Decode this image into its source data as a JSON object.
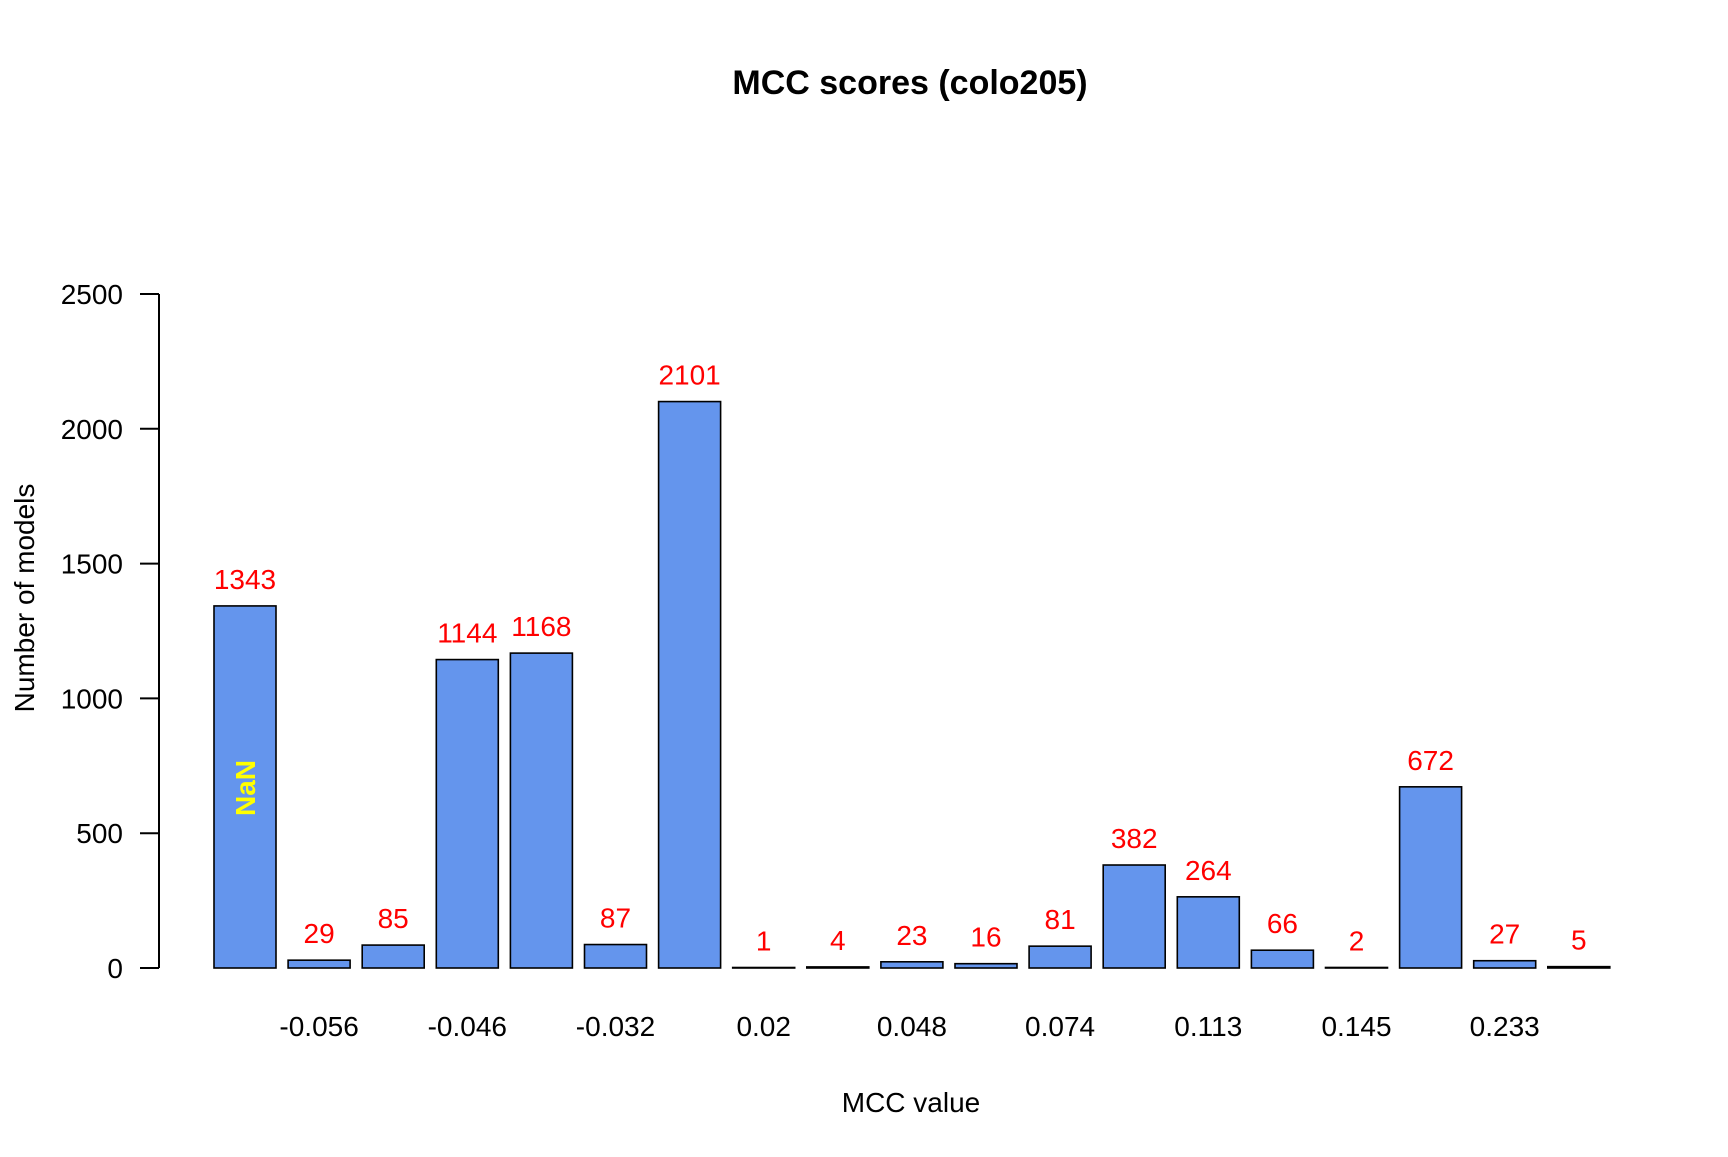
{
  "chart_data": {
    "type": "bar",
    "title": "MCC scores (colo205)",
    "xlabel": "MCC value",
    "ylabel": "Number of models",
    "ylim": [
      0,
      2500
    ],
    "yticks": [
      "0",
      "500",
      "1000",
      "1500",
      "2000",
      "2500"
    ],
    "ytick_values": [
      0,
      500,
      1000,
      1500,
      2000,
      2500
    ],
    "bar_count": 19,
    "values": [
      1343,
      29,
      85,
      1144,
      1168,
      87,
      2101,
      1,
      4,
      23,
      16,
      81,
      382,
      264,
      66,
      2,
      672,
      27,
      5
    ],
    "value_labels": [
      "1343",
      "29",
      "85",
      "1144",
      "1168",
      "87",
      "2101",
      "1",
      "4",
      "23",
      "16",
      "81",
      "382",
      "264",
      "66",
      "2",
      "672",
      "27",
      "5"
    ],
    "x_tick_labels": [
      {
        "bar_index": 1,
        "label": "-0.056"
      },
      {
        "bar_index": 3,
        "label": "-0.046"
      },
      {
        "bar_index": 5,
        "label": "-0.032"
      },
      {
        "bar_index": 7,
        "label": "0.02"
      },
      {
        "bar_index": 9,
        "label": "0.048"
      },
      {
        "bar_index": 11,
        "label": "0.074"
      },
      {
        "bar_index": 13,
        "label": "0.113"
      },
      {
        "bar_index": 15,
        "label": "0.145"
      },
      {
        "bar_index": 17,
        "label": "0.233"
      }
    ],
    "special_label": {
      "bar_index": 0,
      "text": "NaN",
      "color": "#ffff00"
    },
    "colors": {
      "bar_fill": "#6495ed",
      "bar_stroke": "#000000",
      "value_label": "#ff0000",
      "axis": "#000000"
    },
    "grid": false,
    "legend": "none"
  }
}
